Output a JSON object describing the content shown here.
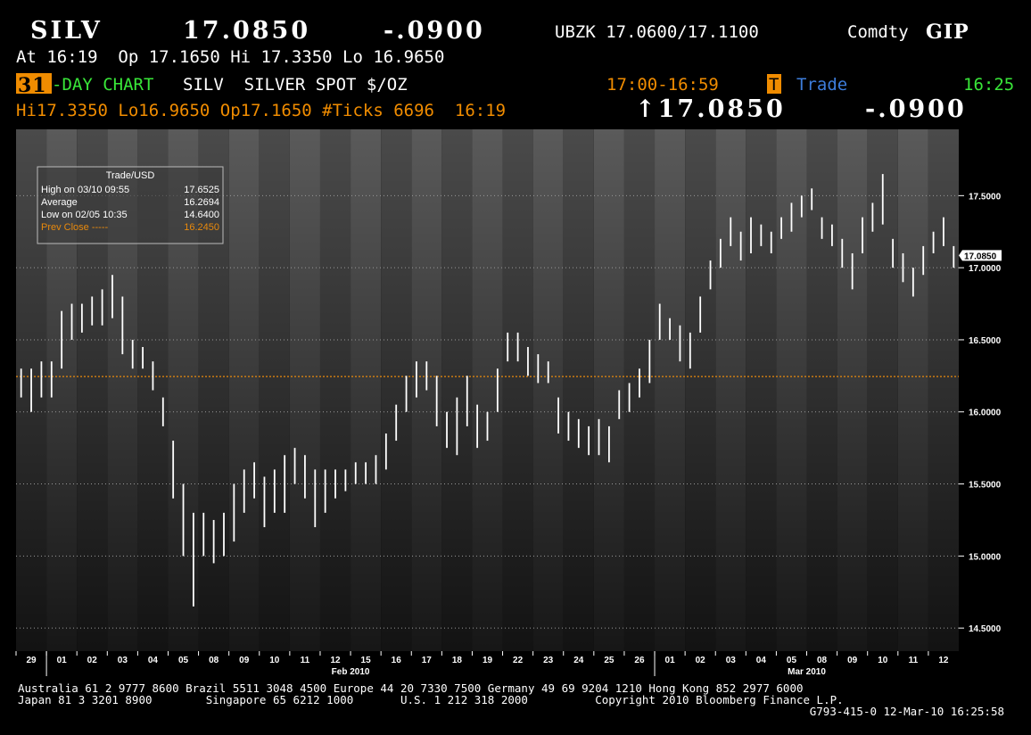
{
  "header": {
    "ticker": "SILV",
    "price": "17.0850",
    "change": "-.0900",
    "bid_ask": "UBZK 17.0600/17.1100",
    "sector": "Comdty",
    "function": "GIP",
    "line2": "At 16:19  Op 17.1650 Hi 17.3350 Lo 16.9650",
    "days": "31",
    "chart_kind": "-DAY CHART",
    "description": "SILV  SILVER SPOT $/OZ",
    "session": "17:00-16:59",
    "t_flag": "T",
    "trade": "Trade",
    "clock": "16:25",
    "stats": "Hi17.3350 Lo16.9650 Op17.1650 #Ticks 6696  16:19",
    "last_price": "↑17.0850",
    "last_change": "-.0900"
  },
  "info": {
    "title": "Trade/USD",
    "rows": [
      [
        "High on 03/10 09:55",
        "17.6525"
      ],
      [
        "Average",
        "16.2694"
      ],
      [
        "Low on 02/05 10:35",
        "14.6400"
      ]
    ],
    "prev_close_label": "Prev Close -----"
  },
  "chart_data": {
    "type": "hilo",
    "categories": [
      "29",
      "01",
      "02",
      "03",
      "04",
      "05",
      "08",
      "09",
      "10",
      "11",
      "12",
      "15",
      "16",
      "17",
      "18",
      "19",
      "22",
      "23",
      "24",
      "25",
      "26",
      "01",
      "02",
      "03",
      "04",
      "05",
      "08",
      "09",
      "10",
      "11",
      "12"
    ],
    "month_labels": [
      "Feb 2010",
      "Mar 2010"
    ],
    "lows": [
      16.1,
      16.0,
      16.1,
      16.1,
      16.3,
      16.5,
      16.55,
      16.6,
      16.6,
      16.65,
      16.4,
      16.3,
      16.3,
      16.15,
      15.9,
      15.4,
      15.0,
      14.65,
      15.0,
      14.95,
      15.0,
      15.1,
      15.3,
      15.4,
      15.2,
      15.3,
      15.3,
      15.5,
      15.4,
      15.2,
      15.3,
      15.4,
      15.45,
      15.5,
      15.5,
      15.5,
      15.6,
      15.8,
      16.0,
      16.1,
      16.15,
      15.9,
      15.75,
      15.7,
      15.9,
      15.75,
      15.8,
      16.0,
      16.35,
      16.35,
      16.25,
      16.2,
      16.2,
      15.85,
      15.8,
      15.75,
      15.7,
      15.7,
      15.65,
      15.95,
      16.0,
      16.1,
      16.2,
      16.5,
      16.5,
      16.35,
      16.3,
      16.55,
      16.85,
      17.0,
      17.15,
      17.05,
      17.1,
      17.15,
      17.1,
      17.2,
      17.25,
      17.35,
      17.4,
      17.2,
      17.15,
      17.0,
      16.85,
      17.1,
      17.25,
      17.3,
      17.0,
      16.9,
      16.8,
      16.95,
      17.1,
      17.15,
      17.0
    ],
    "highs": [
      16.3,
      16.3,
      16.35,
      16.35,
      16.7,
      16.75,
      16.75,
      16.8,
      16.85,
      16.95,
      16.8,
      16.5,
      16.45,
      16.35,
      16.1,
      15.8,
      15.5,
      15.3,
      15.3,
      15.25,
      15.3,
      15.5,
      15.6,
      15.65,
      15.55,
      15.6,
      15.7,
      15.75,
      15.7,
      15.6,
      15.6,
      15.6,
      15.6,
      15.65,
      15.65,
      15.7,
      15.85,
      16.05,
      16.25,
      16.35,
      16.35,
      16.25,
      16.0,
      16.1,
      16.25,
      16.05,
      16.0,
      16.3,
      16.55,
      16.55,
      16.45,
      16.4,
      16.35,
      16.1,
      16.0,
      15.95,
      15.9,
      15.95,
      15.9,
      16.15,
      16.2,
      16.3,
      16.5,
      16.75,
      16.65,
      16.6,
      16.55,
      16.8,
      17.05,
      17.2,
      17.35,
      17.25,
      17.35,
      17.3,
      17.25,
      17.35,
      17.45,
      17.5,
      17.55,
      17.35,
      17.3,
      17.2,
      17.1,
      17.35,
      17.45,
      17.65,
      17.2,
      17.1,
      17.0,
      17.15,
      17.25,
      17.35,
      17.15
    ],
    "ylim": [
      14.34,
      17.96
    ],
    "yticks": [
      {
        "value": 14.5,
        "label": "14.5000"
      },
      {
        "value": 15,
        "label": "15.0000"
      },
      {
        "value": 15.5,
        "label": "15.5000"
      },
      {
        "value": 16,
        "label": "16.0000"
      },
      {
        "value": 16.5,
        "label": "16.5000"
      },
      {
        "value": 17,
        "label": "17.0000"
      },
      {
        "value": 17.5,
        "label": "17.5000"
      }
    ],
    "grid": true,
    "color": "#ffffff",
    "prev_close": {
      "value": 16.245,
      "label": "16.2450"
    },
    "prev_close_color": "#e8890c",
    "last": {
      "value": 17.085,
      "label": "17.0850"
    }
  },
  "footer": [
    "Australia 61 2 9777 8600 Brazil 5511 3048 4500 Europe 44 20 7330 7500 Germany 49 69 9204 1210 Hong Kong 852 2977 6000",
    "Japan 81 3 3201 8900        Singapore 65 6212 1000       U.S. 1 212 318 2000          Copyright 2010 Bloomberg Finance L.P.",
    "G793-415-0 12-Mar-10 16:25:58"
  ]
}
